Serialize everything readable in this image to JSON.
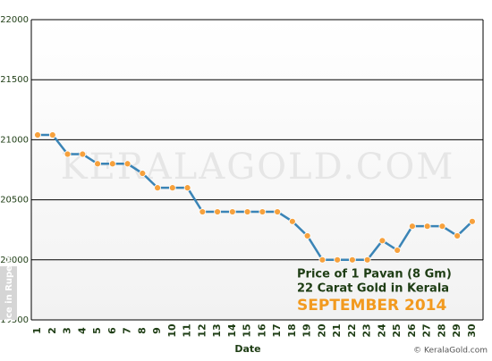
{
  "chart_data": {
    "type": "line",
    "x": [
      1,
      2,
      3,
      4,
      5,
      6,
      7,
      8,
      9,
      10,
      11,
      12,
      13,
      14,
      15,
      16,
      17,
      18,
      19,
      20,
      21,
      22,
      23,
      24,
      25,
      26,
      27,
      28,
      29,
      30
    ],
    "series": [
      {
        "color": "#3a84b6",
        "values": [
          21040,
          21040,
          20880,
          20880,
          20800,
          20800,
          20800,
          20720,
          20600,
          20600,
          20600,
          20400,
          20400,
          20400,
          20400,
          20400,
          20400,
          20320,
          20200,
          20000,
          20000,
          20000,
          20000,
          20160,
          20080,
          20280,
          20280,
          20280,
          20200,
          20320
        ]
      }
    ],
    "marker_color": "#f6a13d",
    "xlim": [
      0.58,
      30.72
    ],
    "ylim": [
      19500,
      22000
    ],
    "yticks": [
      19500,
      20000,
      20500,
      21000,
      21500,
      22000
    ],
    "grid": true,
    "x_label": "Date",
    "y_label": "Price in Rupees",
    "annotations": [
      "Price of 1 Pavan (8 Gm)",
      "22 Carat Gold in Kerala",
      "SEPTEMBER 2014"
    ],
    "watermark": "KeralaGold.com",
    "footer": "© KeralaGold.com"
  }
}
